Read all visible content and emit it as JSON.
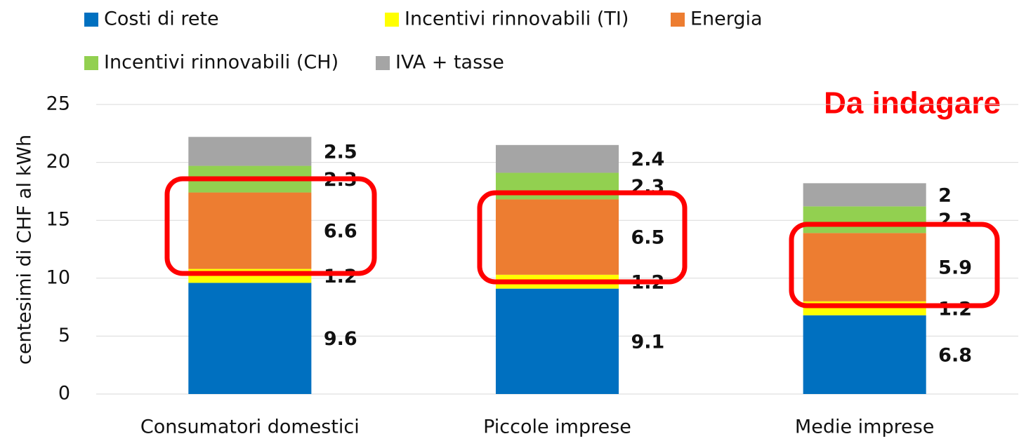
{
  "chart_data": {
    "type": "stacked_bar",
    "annotation": "Da indagare",
    "ylabel": "centesimi di CHF al kWh",
    "categories": [
      "Consumatori domestici",
      "Piccole imprese",
      "Medie imprese"
    ],
    "series": [
      {
        "name": "Costi di rete",
        "color": "#0070c0",
        "values": [
          9.6,
          9.1,
          6.8
        ]
      },
      {
        "name": "Incentivi rinnovabili (TI)",
        "color": "#ffff00",
        "values": [
          1.2,
          1.2,
          1.2
        ]
      },
      {
        "name": "Energia",
        "color": "#ed7d31",
        "values": [
          6.6,
          6.5,
          5.9
        ]
      },
      {
        "name": "Incentivi rinnovabili (CH)",
        "color": "#92d050",
        "values": [
          2.3,
          2.3,
          2.3
        ]
      },
      {
        "name": "IVA + tasse",
        "color": "#a5a5a5",
        "values": [
          2.5,
          2.4,
          2.0
        ]
      }
    ],
    "ylim": [
      0,
      25
    ],
    "yticks": [
      0,
      5,
      10,
      15,
      20,
      25
    ],
    "grid": true
  }
}
